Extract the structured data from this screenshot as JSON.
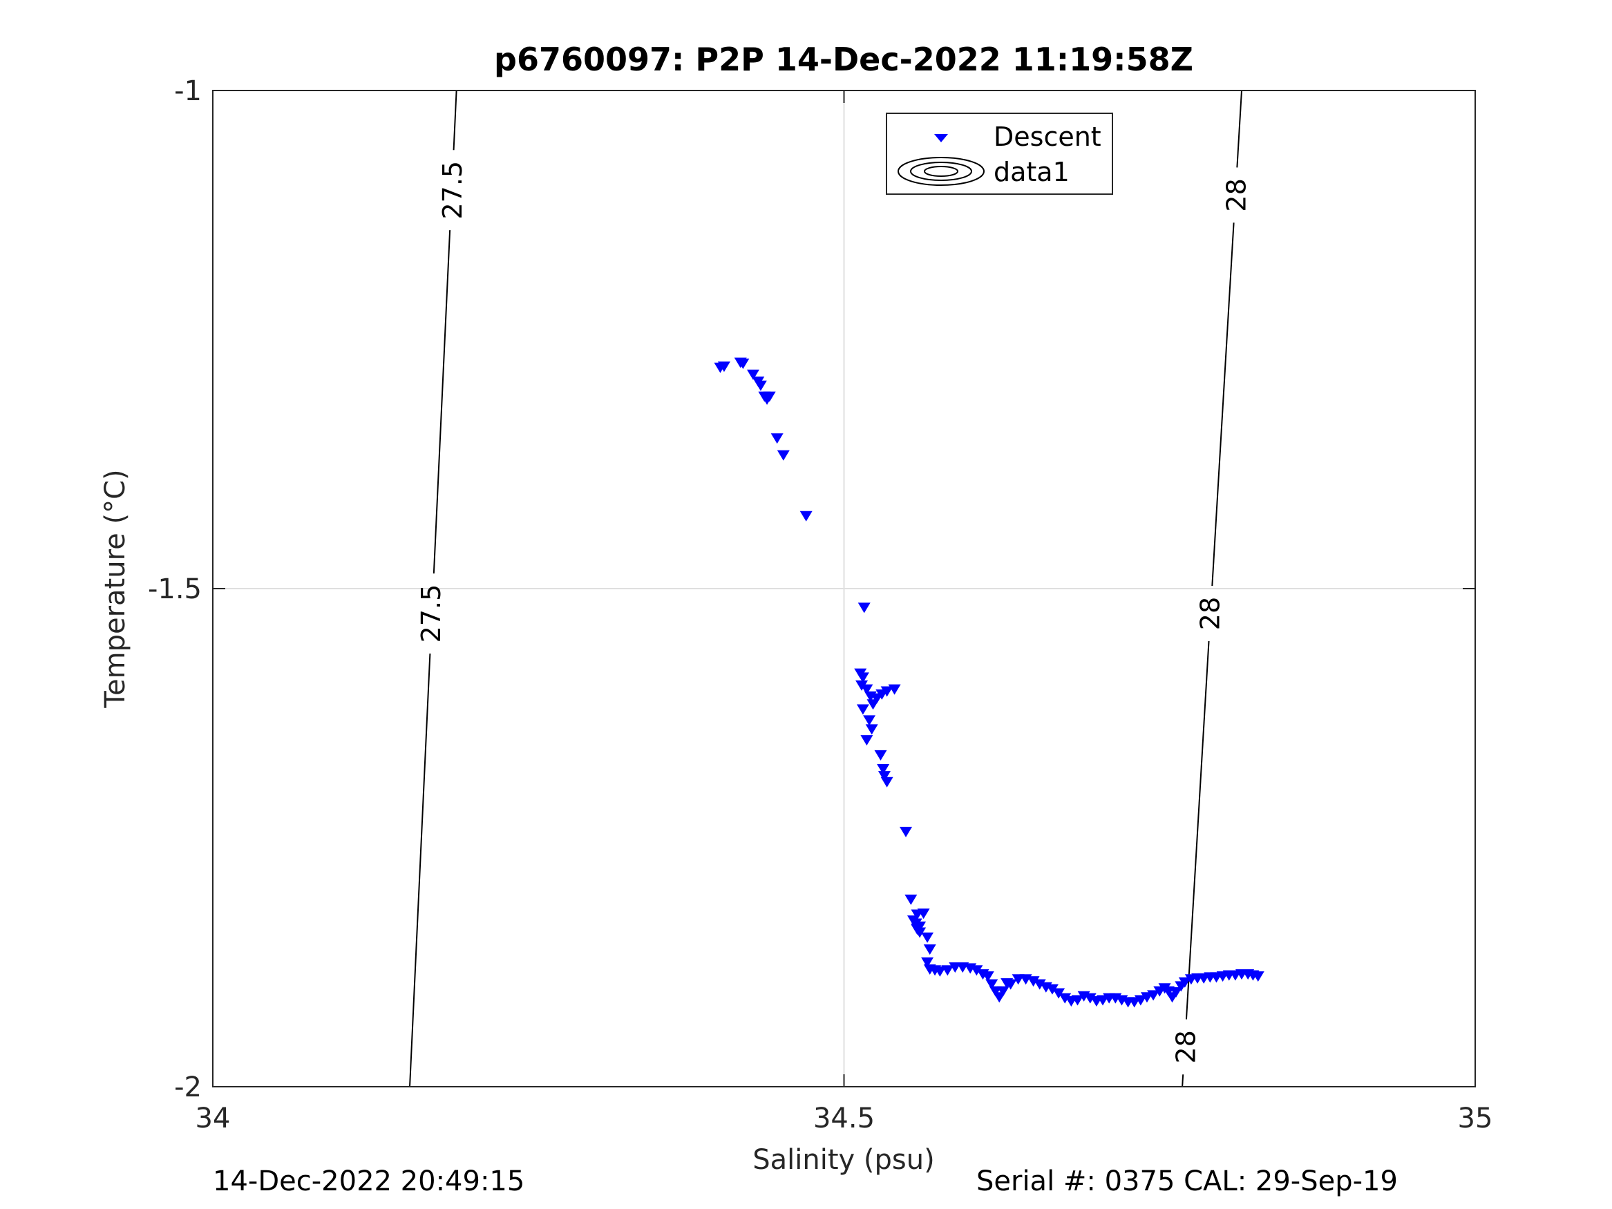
{
  "chart_data": {
    "type": "scatter",
    "title": "p6760097: P2P 14-Dec-2022 11:19:58Z",
    "xlabel": "Salinity (psu)",
    "ylabel": "Temperature (°C)",
    "xlim": [
      34,
      35
    ],
    "ylim": [
      -2,
      -1
    ],
    "xticks": [
      34,
      34.5,
      35
    ],
    "xtick_labels": [
      "34",
      "34.5",
      "35"
    ],
    "yticks": [
      -2,
      -1.5,
      -1
    ],
    "ytick_labels": [
      "-2",
      "-1.5",
      "-1"
    ],
    "grid": true,
    "legend": {
      "placement": "top-center",
      "entries": [
        "Descent",
        "data1"
      ]
    },
    "marker_color": "#0000ff",
    "contour_color": "#000000",
    "series": [
      {
        "name": "Descent",
        "marker": "triangle-down",
        "points": [
          [
            34.402,
            -1.278
          ],
          [
            34.405,
            -1.277
          ],
          [
            34.418,
            -1.273
          ],
          [
            34.42,
            -1.274
          ],
          [
            34.428,
            -1.285
          ],
          [
            34.432,
            -1.292
          ],
          [
            34.434,
            -1.296
          ],
          [
            34.437,
            -1.307
          ],
          [
            34.439,
            -1.31
          ],
          [
            34.441,
            -1.307
          ],
          [
            34.447,
            -1.349
          ],
          [
            34.452,
            -1.366
          ],
          [
            34.47,
            -1.427
          ],
          [
            34.516,
            -1.519
          ],
          [
            34.513,
            -1.585
          ],
          [
            34.515,
            -1.589
          ],
          [
            34.514,
            -1.597
          ],
          [
            34.518,
            -1.601
          ],
          [
            34.521,
            -1.608
          ],
          [
            34.523,
            -1.616
          ],
          [
            34.526,
            -1.61
          ],
          [
            34.53,
            -1.606
          ],
          [
            34.534,
            -1.603
          ],
          [
            34.54,
            -1.601
          ],
          [
            34.515,
            -1.621
          ],
          [
            34.52,
            -1.632
          ],
          [
            34.522,
            -1.641
          ],
          [
            34.518,
            -1.652
          ],
          [
            34.529,
            -1.667
          ],
          [
            34.531,
            -1.681
          ],
          [
            34.532,
            -1.688
          ],
          [
            34.534,
            -1.694
          ],
          [
            34.549,
            -1.744
          ],
          [
            34.553,
            -1.812
          ],
          [
            34.555,
            -1.833
          ],
          [
            34.557,
            -1.836
          ],
          [
            34.558,
            -1.842
          ],
          [
            34.56,
            -1.845
          ],
          [
            34.558,
            -1.841
          ],
          [
            34.56,
            -1.839
          ],
          [
            34.558,
            -1.827
          ],
          [
            34.563,
            -1.826
          ],
          [
            34.566,
            -1.85
          ],
          [
            34.568,
            -1.862
          ],
          [
            34.566,
            -1.875
          ],
          [
            34.568,
            -1.882
          ],
          [
            34.572,
            -1.883
          ],
          [
            34.576,
            -1.884
          ],
          [
            34.582,
            -1.883
          ],
          [
            34.588,
            -1.88
          ],
          [
            34.594,
            -1.88
          ],
          [
            34.6,
            -1.881
          ],
          [
            34.605,
            -1.883
          ],
          [
            34.61,
            -1.887
          ],
          [
            34.614,
            -1.889
          ],
          [
            34.617,
            -1.897
          ],
          [
            34.62,
            -1.904
          ],
          [
            34.623,
            -1.91
          ],
          [
            34.626,
            -1.904
          ],
          [
            34.629,
            -1.896
          ],
          [
            34.632,
            -1.897
          ],
          [
            34.638,
            -1.892
          ],
          [
            34.644,
            -1.892
          ],
          [
            34.65,
            -1.894
          ],
          [
            34.655,
            -1.897
          ],
          [
            34.66,
            -1.9
          ],
          [
            34.665,
            -1.902
          ],
          [
            34.67,
            -1.906
          ],
          [
            34.675,
            -1.911
          ],
          [
            34.68,
            -1.914
          ],
          [
            34.685,
            -1.913
          ],
          [
            34.69,
            -1.909
          ],
          [
            34.695,
            -1.911
          ],
          [
            34.7,
            -1.914
          ],
          [
            34.705,
            -1.913
          ],
          [
            34.71,
            -1.911
          ],
          [
            34.715,
            -1.911
          ],
          [
            34.72,
            -1.913
          ],
          [
            34.725,
            -1.915
          ],
          [
            34.73,
            -1.915
          ],
          [
            34.735,
            -1.913
          ],
          [
            34.74,
            -1.91
          ],
          [
            34.745,
            -1.908
          ],
          [
            34.75,
            -1.904
          ],
          [
            34.754,
            -1.901
          ],
          [
            34.757,
            -1.904
          ],
          [
            34.76,
            -1.91
          ],
          [
            34.763,
            -1.905
          ],
          [
            34.767,
            -1.899
          ],
          [
            34.77,
            -1.895
          ],
          [
            34.775,
            -1.892
          ],
          [
            34.78,
            -1.891
          ],
          [
            34.785,
            -1.891
          ],
          [
            34.79,
            -1.89
          ],
          [
            34.795,
            -1.89
          ],
          [
            34.8,
            -1.889
          ],
          [
            34.805,
            -1.888
          ],
          [
            34.81,
            -1.888
          ],
          [
            34.815,
            -1.887
          ],
          [
            34.82,
            -1.887
          ],
          [
            34.824,
            -1.888
          ],
          [
            34.828,
            -1.889
          ]
        ]
      }
    ],
    "contours": [
      {
        "name": "data1",
        "lines": [
          {
            "level": "27.5",
            "points": [
              [
                34.193,
                -1.0
              ],
              [
                34.156,
                -2.0
              ]
            ],
            "labels": [
              {
                "text": "27.5",
                "x": 34.19,
                "y": -1.1
              },
              {
                "text": "27.5",
                "x": 34.173,
                "y": -1.525
              }
            ]
          },
          {
            "level": "28",
            "points": [
              [
                34.815,
                -1.0
              ],
              [
                34.768,
                -2.0
              ]
            ],
            "labels": [
              {
                "text": "28",
                "x": 34.811,
                "y": -1.105
              },
              {
                "text": "28",
                "x": 34.79,
                "y": -1.525
              },
              {
                "text": "28",
                "x": 34.771,
                "y": -1.96
              }
            ]
          }
        ]
      }
    ]
  },
  "footer": {
    "timestamp": "14-Dec-2022 20:49:15",
    "serial": "Serial #: 0375  CAL: 29-Sep-19"
  }
}
